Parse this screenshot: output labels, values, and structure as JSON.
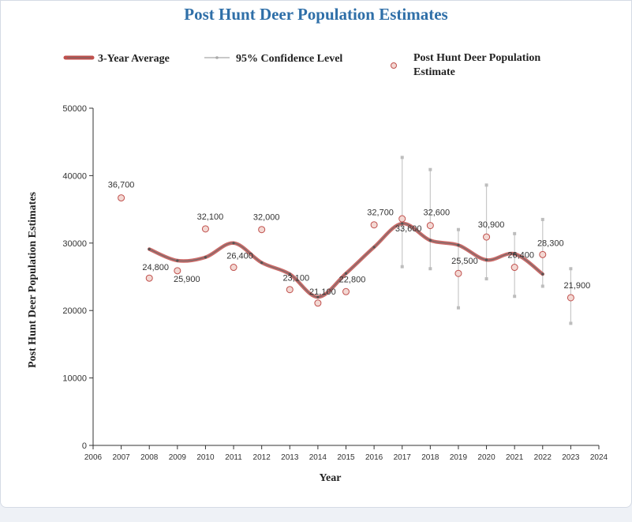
{
  "chart_data": {
    "type": "line",
    "title": "Post Hunt Deer Population Estimates",
    "xlabel": "Year",
    "ylabel": "Post Hunt Deer Population Estimates",
    "xlim": [
      2006,
      2024
    ],
    "ylim": [
      0,
      50000
    ],
    "x_ticks": [
      "2006",
      "2007",
      "2008",
      "2009",
      "2010",
      "2011",
      "2012",
      "2013",
      "2014",
      "2015",
      "2016",
      "2017",
      "2018",
      "2019",
      "2020",
      "2021",
      "2022",
      "2023",
      "2024"
    ],
    "y_ticks": [
      "0",
      "10000",
      "20000",
      "30000",
      "40000",
      "50000"
    ],
    "legend": [
      "3-Year Average",
      "95% Confidence Level",
      "Post Hunt Deer Population Estimate"
    ],
    "legend_position": "top",
    "grid": false,
    "colors": {
      "average": "#c0504d",
      "average_core": "#6b6b6b",
      "confidence": "#c8c8c8",
      "marker_fill": "#f3d8d3",
      "marker_stroke": "#c0504d",
      "title": "#2f6fa8"
    },
    "series": [
      {
        "name": "Post Hunt Deer Population Estimate",
        "kind": "scatter",
        "x": [
          2007,
          2008,
          2009,
          2010,
          2011,
          2012,
          2013,
          2014,
          2015,
          2016,
          2017,
          2018,
          2019,
          2020,
          2021,
          2022,
          2023
        ],
        "values": [
          36700,
          24800,
          25900,
          32100,
          26400,
          32000,
          23100,
          21100,
          22800,
          32700,
          33600,
          32600,
          25500,
          30900,
          26400,
          28300,
          21900
        ],
        "labels": [
          "36,700",
          "24,800",
          "25,900",
          "32,100",
          "26,400",
          "32,000",
          "23,100",
          "21,100",
          "22,800",
          "32,700",
          "33,600",
          "32,600",
          "25,500",
          "30,900",
          "26,400",
          "28,300",
          "21,900"
        ]
      },
      {
        "name": "3-Year Average",
        "kind": "line",
        "x": [
          2008,
          2009,
          2010,
          2011,
          2012,
          2013,
          2014,
          2015,
          2016,
          2017,
          2018,
          2019,
          2020,
          2021,
          2022
        ],
        "values": [
          29100,
          27400,
          27900,
          30000,
          27100,
          25400,
          22000,
          25500,
          29400,
          32900,
          30400,
          29700,
          27500,
          28400,
          25400
        ]
      },
      {
        "name": "95% Confidence Level",
        "kind": "errorbar",
        "x": [
          2017,
          2018,
          2019,
          2020,
          2021,
          2022,
          2023
        ],
        "low": [
          26500,
          26200,
          20400,
          24700,
          22100,
          23600,
          18100
        ],
        "high": [
          42700,
          40900,
          32000,
          38600,
          31400,
          33500,
          26200
        ]
      }
    ]
  }
}
